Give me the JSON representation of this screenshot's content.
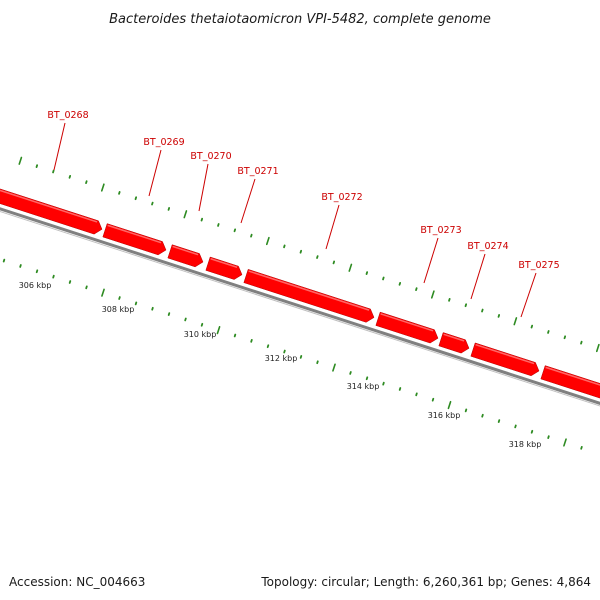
{
  "title": "Bacteroides thetaiotaomicron VPI-5482, complete genome",
  "footer": {
    "accession": "Accession: NC_004663",
    "summary": "Topology: circular; Length: 6,260,361 bp; Genes: 4,864"
  },
  "colors": {
    "gene_fill": "#ff0000",
    "gene_highlight": "#ff6666",
    "gene_dark": "#b30000",
    "backbone": "#808080",
    "backbone_light": "#c0c0c0",
    "tick": "#2e8b22",
    "label": "#cc0000"
  },
  "genes": [
    {
      "label": "BT_0268"
    },
    {
      "label": "BT_0269"
    },
    {
      "label": "BT_0270"
    },
    {
      "label": "BT_0271"
    },
    {
      "label": "BT_0272"
    },
    {
      "label": "BT_0273"
    },
    {
      "label": "BT_0274"
    },
    {
      "label": "BT_0275"
    }
  ],
  "scale": {
    "labels": [
      "306 kbp",
      "308 kbp",
      "310 kbp",
      "312 kbp",
      "314 kbp",
      "316 kbp",
      "318 kbp"
    ]
  }
}
